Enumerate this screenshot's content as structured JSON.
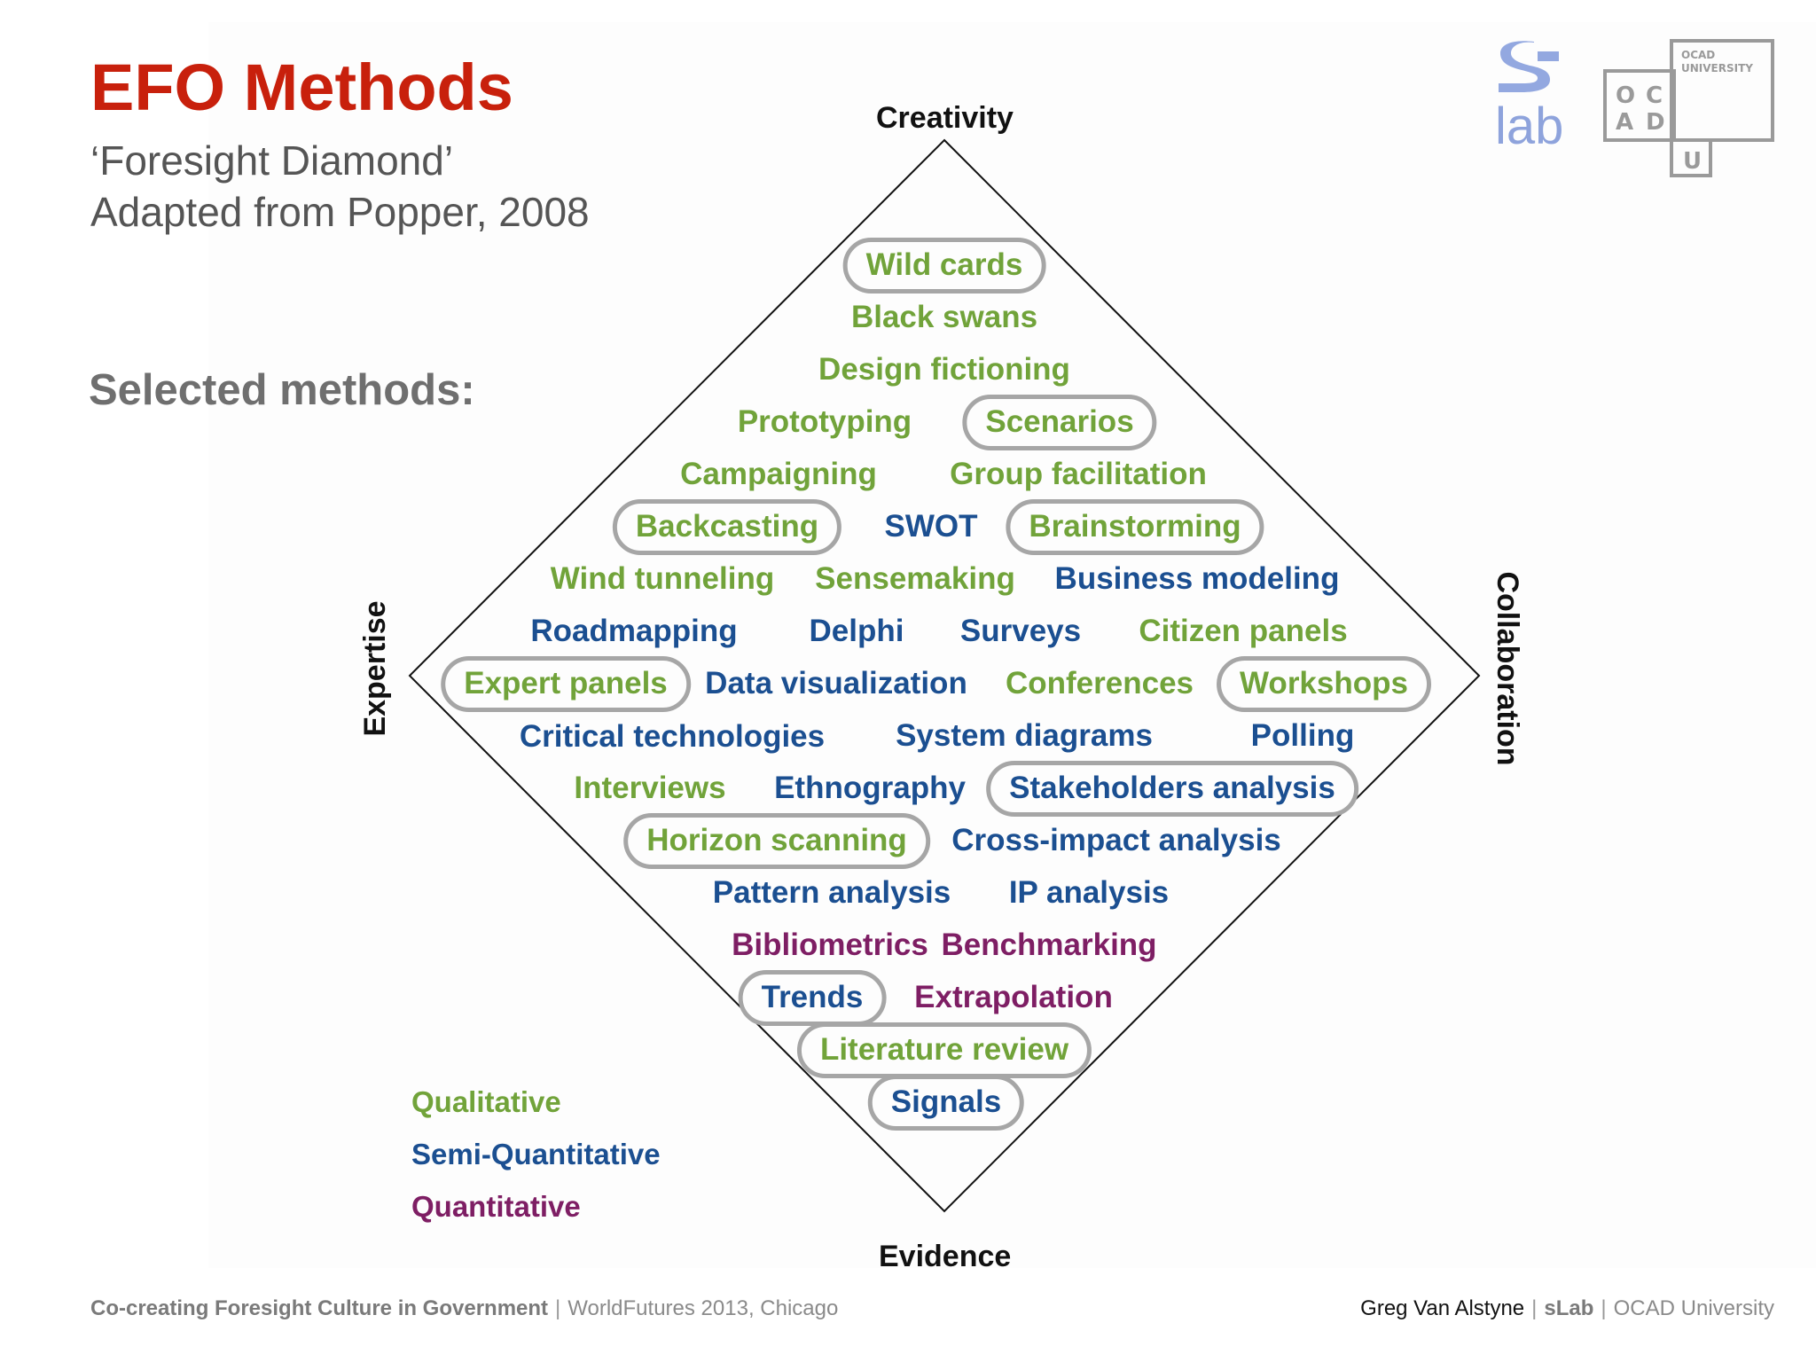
{
  "title": "EFO Methods",
  "subtitle_lines": [
    "‘Foresight Diamond’",
    "Adapted from Popper, 2008"
  ],
  "selected_label": "Selected methods:",
  "axes": {
    "top": "Creativity",
    "bottom": "Evidence",
    "left": "Expertise",
    "right": "Collaboration"
  },
  "methods": [
    {
      "label": "Wild cards",
      "category": "qualitative",
      "highlighted": true
    },
    {
      "label": "Black swans",
      "category": "qualitative",
      "highlighted": false
    },
    {
      "label": "Design fictioning",
      "category": "qualitative",
      "highlighted": false
    },
    {
      "label": "Prototyping",
      "category": "qualitative",
      "highlighted": false
    },
    {
      "label": "Scenarios",
      "category": "qualitative",
      "highlighted": true
    },
    {
      "label": "Campaigning",
      "category": "qualitative",
      "highlighted": false
    },
    {
      "label": "Group facilitation",
      "category": "qualitative",
      "highlighted": false
    },
    {
      "label": "Backcasting",
      "category": "qualitative",
      "highlighted": true
    },
    {
      "label": "SWOT",
      "category": "semi-quantitative",
      "highlighted": false
    },
    {
      "label": "Brainstorming",
      "category": "qualitative",
      "highlighted": true
    },
    {
      "label": "Wind tunneling",
      "category": "qualitative",
      "highlighted": false
    },
    {
      "label": "Sensemaking",
      "category": "qualitative",
      "highlighted": false
    },
    {
      "label": "Business modeling",
      "category": "semi-quantitative",
      "highlighted": false
    },
    {
      "label": "Roadmapping",
      "category": "semi-quantitative",
      "highlighted": false
    },
    {
      "label": "Delphi",
      "category": "semi-quantitative",
      "highlighted": false
    },
    {
      "label": "Surveys",
      "category": "semi-quantitative",
      "highlighted": false
    },
    {
      "label": "Citizen panels",
      "category": "qualitative",
      "highlighted": false
    },
    {
      "label": "Expert panels",
      "category": "qualitative",
      "highlighted": true
    },
    {
      "label": "Data visualization",
      "category": "semi-quantitative",
      "highlighted": false
    },
    {
      "label": "Conferences",
      "category": "qualitative",
      "highlighted": false
    },
    {
      "label": "Workshops",
      "category": "qualitative",
      "highlighted": true
    },
    {
      "label": "Critical technologies",
      "category": "semi-quantitative",
      "highlighted": false
    },
    {
      "label": "System diagrams",
      "category": "semi-quantitative",
      "highlighted": false
    },
    {
      "label": "Polling",
      "category": "semi-quantitative",
      "highlighted": false
    },
    {
      "label": "Interviews",
      "category": "qualitative",
      "highlighted": false
    },
    {
      "label": "Ethnography",
      "category": "semi-quantitative",
      "highlighted": false
    },
    {
      "label": "Stakeholders analysis",
      "category": "semi-quantitative",
      "highlighted": true
    },
    {
      "label": "Horizon scanning",
      "category": "qualitative",
      "highlighted": true
    },
    {
      "label": "Cross-impact analysis",
      "category": "semi-quantitative",
      "highlighted": false
    },
    {
      "label": "Pattern analysis",
      "category": "semi-quantitative",
      "highlighted": false
    },
    {
      "label": "IP analysis",
      "category": "semi-quantitative",
      "highlighted": false
    },
    {
      "label": "Bibliometrics",
      "category": "quantitative",
      "highlighted": false
    },
    {
      "label": "Benchmarking",
      "category": "quantitative",
      "highlighted": false
    },
    {
      "label": "Trends",
      "category": "semi-quantitative",
      "highlighted": true
    },
    {
      "label": "Extrapolation",
      "category": "quantitative",
      "highlighted": false
    },
    {
      "label": "Literature review",
      "category": "qualitative",
      "highlighted": true
    },
    {
      "label": "Signals",
      "category": "semi-quantitative",
      "highlighted": true
    }
  ],
  "legend": [
    {
      "label": "Qualitative",
      "color": "#71a33a"
    },
    {
      "label": "Semi-Quantitative",
      "color": "#1b4f91"
    },
    {
      "label": "Quantitative",
      "color": "#7e1e64"
    }
  ],
  "colors": {
    "title": "#c8200c",
    "qualitative": "#71a33a",
    "semi_quantitative": "#1b4f91",
    "quantitative": "#7e1e64",
    "highlight_border": "#a6a6a6"
  },
  "logos": {
    "slab": {
      "text": "lab",
      "icon": "slab-logo"
    },
    "ocad": {
      "letters": [
        "O",
        "C",
        "A",
        "D",
        "U"
      ],
      "caption_lines": [
        "OCAD",
        "UNIVERSITY"
      ],
      "icon": "ocad-logo"
    }
  },
  "footer": {
    "left_title": "Co-creating Foresight Culture in Government",
    "left_event": "WorldFutures 2013, Chicago",
    "right_author": "Greg Van Alstyne",
    "right_lab": "sLab",
    "right_org": "OCAD University",
    "separator": "|"
  }
}
